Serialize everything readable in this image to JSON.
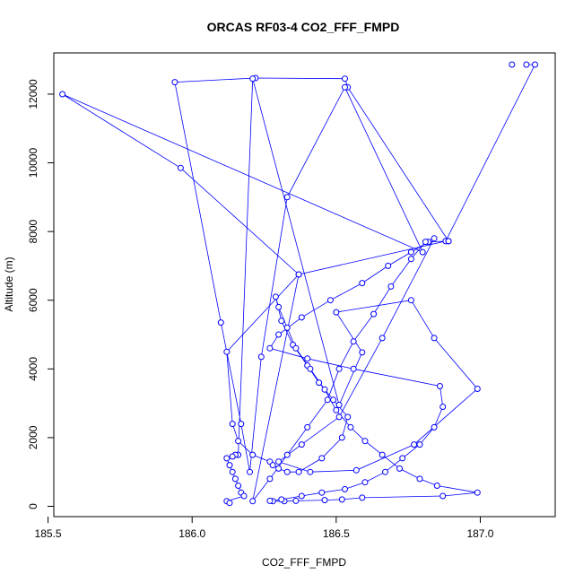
{
  "chart_data": {
    "type": "line",
    "title": "ORCAS RF03-4 CO2_FFF_FMPD",
    "xlabel": "CO2_FFF_FMPD",
    "ylabel": "Altitude (m)",
    "xlim": [
      185.52,
      187.26
    ],
    "ylim": [
      -300,
      13200
    ],
    "x_ticks": [
      185.5,
      186.0,
      186.5,
      187.0
    ],
    "x_tick_labels": [
      "185.5",
      "186.0",
      "186.5",
      "187.0"
    ],
    "y_ticks": [
      0,
      2000,
      4000,
      6000,
      8000,
      10000,
      12000
    ],
    "y_tick_labels": [
      "0",
      "2000",
      "4000",
      "6000",
      "8000",
      "10000",
      "12000"
    ],
    "grid": false,
    "legend": "none",
    "color": "#0000ff",
    "series": [
      {
        "marker": "open-circle",
        "x": [
          187.16,
          187.19,
          186.88,
          186.37,
          186.12,
          186.14,
          186.16,
          186.21,
          186.27,
          186.28,
          186.3,
          186.33,
          186.37,
          186.45,
          186.52,
          186.54,
          186.49,
          186.44,
          186.4,
          186.35,
          186.31,
          186.29,
          186.3,
          186.33,
          186.36,
          186.41,
          186.46,
          186.5,
          186.55,
          186.6,
          186.66,
          186.72,
          186.79,
          186.85,
          186.99,
          186.87,
          186.59,
          186.52,
          186.46,
          186.36,
          186.32,
          186.28,
          186.27,
          186.31,
          186.38,
          186.45,
          186.53,
          186.6,
          186.67,
          186.73,
          186.79,
          186.84,
          186.87,
          186.86,
          186.56,
          186.4,
          186.27,
          186.3,
          186.38,
          186.48,
          186.59,
          186.68,
          186.76,
          186.82,
          186.89,
          186.54,
          186.53,
          186.22,
          185.94,
          186.1,
          186.17,
          186.2,
          186.24,
          186.33,
          186.53,
          186.8,
          185.55,
          185.96,
          186.37,
          186.21,
          186.27,
          186.33,
          186.4,
          186.47,
          186.51,
          186.56,
          186.63,
          186.69,
          186.76,
          186.81,
          186.84,
          186.66,
          186.51,
          186.38,
          186.3,
          186.41,
          186.57,
          186.77,
          186.99,
          186.84,
          186.76,
          186.5,
          186.59,
          186.51,
          186.21,
          186.16,
          186.15,
          186.14,
          186.12,
          186.13,
          186.14,
          186.15,
          186.16,
          186.17,
          186.18,
          186.12,
          186.13
        ]
      }
    ],
    "single_points": [
      {
        "x": 187.11,
        "y": 12860
      },
      {
        "x": 186.89,
        "y": 7720
      }
    ]
  },
  "y_values": [
    12860,
    12860,
    7720,
    6750,
    4500,
    2400,
    1900,
    1500,
    1300,
    1200,
    1100,
    1000,
    1000,
    1400,
    2000,
    2600,
    3100,
    3600,
    4100,
    4700,
    5400,
    6100,
    5800,
    5200,
    4600,
    4000,
    3400,
    2800,
    2300,
    1900,
    1500,
    1100,
    800,
    600,
    400,
    300,
    250,
    200,
    180,
    160,
    150,
    150,
    160,
    200,
    300,
    400,
    500,
    700,
    1000,
    1400,
    1800,
    2300,
    2900,
    3500,
    4000,
    4300,
    4600,
    5000,
    5500,
    6000,
    6500,
    7000,
    7400,
    7700,
    7720,
    12200,
    12450,
    12470,
    12350,
    5350,
    2400,
    1000,
    4350,
    9000,
    12200,
    7400,
    12000,
    9850,
    6750,
    150,
    800,
    1500,
    2300,
    3100,
    4000,
    4800,
    5600,
    6400,
    7200,
    7700,
    7800,
    4900,
    2600,
    1800,
    1300,
    1000,
    1050,
    1800,
    3420,
    4900,
    6000,
    5650,
    4480,
    2950,
    12450,
    1500,
    1500,
    1450,
    1400,
    1200,
    1000,
    800,
    600,
    400,
    300,
    150,
    100
  ]
}
